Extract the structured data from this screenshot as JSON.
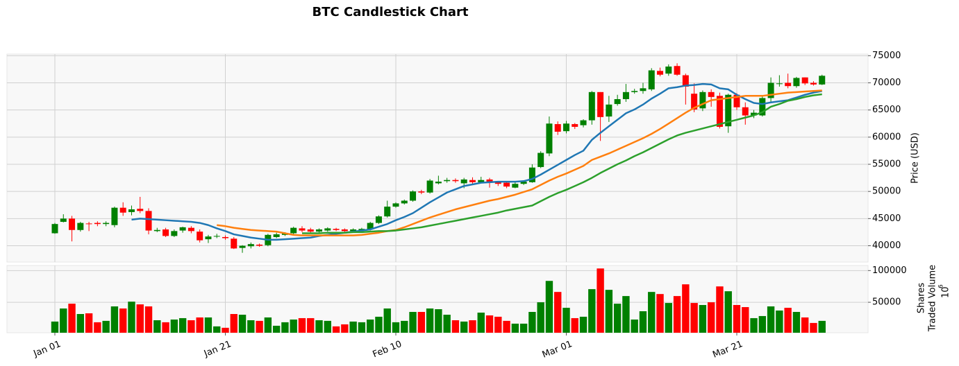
{
  "chart_data": {
    "type": "candlestick",
    "title": "BTC Candlestick Chart",
    "ylabel": "Price (USD)",
    "volume_ylabel": [
      "Shares",
      "Traded Volume"
    ],
    "volume_offset": {
      "base": "10",
      "exponent": "6"
    },
    "categories": [
      "Jan 01",
      null,
      null,
      null,
      null,
      null,
      null,
      null,
      null,
      null,
      null,
      null,
      null,
      null,
      null,
      null,
      null,
      null,
      null,
      null,
      "Jan 21",
      null,
      null,
      null,
      null,
      null,
      null,
      null,
      null,
      null,
      null,
      null,
      null,
      null,
      null,
      null,
      null,
      null,
      null,
      null,
      "Feb 10",
      null,
      null,
      null,
      null,
      null,
      null,
      null,
      null,
      null,
      null,
      null,
      null,
      null,
      null,
      null,
      null,
      null,
      null,
      null,
      "Mar 01",
      null,
      null,
      null,
      null,
      null,
      null,
      null,
      null,
      null,
      null,
      null,
      null,
      null,
      null,
      null,
      null,
      null,
      null,
      null,
      "Mar 21",
      null,
      null,
      null,
      null,
      null,
      null,
      null,
      null,
      null,
      null
    ],
    "open": [
      42300,
      44400,
      45000,
      42900,
      44100,
      44200,
      44000,
      43800,
      47000,
      46200,
      46800,
      46400,
      42700,
      43000,
      41800,
      42800,
      43300,
      42600,
      41200,
      41700,
      41600,
      41300,
      39600,
      39900,
      40200,
      40100,
      41600,
      42000,
      42300,
      43200,
      43000,
      42600,
      42800,
      43100,
      43000,
      42700,
      42800,
      43000,
      44200,
      45400,
      47200,
      47800,
      48300,
      50000,
      49800,
      51500,
      51900,
      52100,
      51500,
      52100,
      51700,
      52200,
      51700,
      51600,
      50700,
      51400,
      51700,
      54500,
      57000,
      62400,
      61100,
      62400,
      62200,
      63100,
      68300,
      63800,
      66100,
      67000,
      68300,
      68500,
      68800,
      72200,
      71700,
      73100,
      71400,
      68000,
      65300,
      68300,
      67600,
      62000,
      67800,
      65500,
      64000,
      64000,
      67200,
      69800,
      70000,
      69400,
      71000,
      70000,
      69700
    ],
    "high": [
      44200,
      45800,
      45500,
      44400,
      44400,
      44500,
      44500,
      47200,
      48000,
      47400,
      49000,
      46900,
      43300,
      43300,
      43000,
      43500,
      43600,
      43000,
      42000,
      42200,
      41900,
      41600,
      40100,
      40600,
      40400,
      42200,
      42400,
      42500,
      43500,
      43600,
      43300,
      43200,
      43400,
      43300,
      43200,
      43200,
      43300,
      44400,
      45600,
      48300,
      48000,
      48500,
      50200,
      50300,
      52300,
      52900,
      52500,
      52400,
      52500,
      52600,
      52700,
      52500,
      51900,
      51700,
      51800,
      52000,
      55000,
      57400,
      63800,
      62900,
      63000,
      62600,
      63300,
      68500,
      68300,
      67600,
      67800,
      69800,
      68900,
      70000,
      72700,
      72800,
      73400,
      73600,
      71700,
      69900,
      68600,
      68800,
      68200,
      68000,
      68100,
      66400,
      65000,
      67500,
      71000,
      71400,
      71700,
      71100,
      71000,
      70300,
      71500
    ],
    "low": [
      42200,
      44300,
      40800,
      42600,
      42700,
      43600,
      43600,
      43400,
      45500,
      45600,
      46000,
      42100,
      42500,
      41600,
      41600,
      42400,
      42300,
      40600,
      40500,
      41400,
      41100,
      39400,
      38700,
      39500,
      39800,
      39900,
      41400,
      41800,
      42000,
      42500,
      42400,
      42400,
      42600,
      42700,
      42500,
      42500,
      42600,
      42800,
      44000,
      45200,
      47000,
      47600,
      48100,
      49500,
      49600,
      51300,
      51600,
      51600,
      50600,
      51400,
      51500,
      50700,
      51000,
      50600,
      50600,
      51200,
      51600,
      54300,
      56500,
      60400,
      60700,
      61500,
      61800,
      62300,
      59300,
      62800,
      65800,
      66500,
      68000,
      68000,
      68500,
      71200,
      71300,
      71300,
      66000,
      64600,
      64800,
      65600,
      61600,
      60800,
      65000,
      62300,
      63500,
      63800,
      66500,
      69300,
      69000,
      69100,
      69600,
      69500,
      69600
    ],
    "close": [
      44000,
      45000,
      42900,
      44200,
      44000,
      44000,
      44200,
      47000,
      46100,
      46700,
      46400,
      42800,
      42900,
      41800,
      42700,
      43400,
      42700,
      41000,
      41700,
      41800,
      41400,
      39500,
      40000,
      40300,
      40000,
      42000,
      42100,
      42300,
      43300,
      42800,
      42600,
      43000,
      43200,
      42900,
      42700,
      43000,
      43100,
      44200,
      45400,
      47200,
      47800,
      48300,
      50000,
      49800,
      52000,
      51800,
      52100,
      51900,
      52200,
      51700,
      52100,
      51700,
      51400,
      50900,
      51400,
      51800,
      54400,
      57100,
      62500,
      61000,
      62500,
      61900,
      63100,
      68300,
      63700,
      66000,
      67000,
      68300,
      68500,
      69000,
      72300,
      71500,
      73000,
      71500,
      69300,
      65100,
      68300,
      67400,
      61900,
      67800,
      65500,
      64000,
      64500,
      67200,
      70000,
      69900,
      69400,
      70900,
      69900,
      69700,
      71300
    ],
    "volume": [
      19600,
      40200,
      47800,
      31500,
      32600,
      18500,
      20700,
      43500,
      40200,
      51000,
      46700,
      43500,
      21700,
      18500,
      22800,
      25000,
      21700,
      26100,
      26100,
      12000,
      9800,
      31500,
      30400,
      21700,
      20700,
      26100,
      13000,
      18500,
      22800,
      25000,
      25000,
      21700,
      20700,
      12000,
      15200,
      19600,
      18500,
      22800,
      27200,
      40200,
      18500,
      20700,
      34800,
      34800,
      40200,
      39100,
      30400,
      21700,
      19600,
      21700,
      33700,
      29300,
      27200,
      20700,
      16300,
      16300,
      34800,
      50000,
      83700,
      66300,
      41300,
      25000,
      27200,
      70700,
      103300,
      69600,
      47800,
      59800,
      22800,
      35900,
      66300,
      63000,
      48900,
      59800,
      78300,
      48900,
      45700,
      50000,
      75000,
      67400,
      45700,
      42400,
      25000,
      28300,
      43500,
      37000,
      41300,
      34800,
      26100,
      17400,
      20700
    ],
    "moving_averages": [
      {
        "color": "#1f77b4",
        "values": [
          null,
          null,
          null,
          null,
          null,
          null,
          null,
          null,
          null,
          44800,
          45000,
          44900,
          44800,
          44700,
          44600,
          44500,
          44400,
          44200,
          43800,
          43200,
          42700,
          42100,
          41800,
          41500,
          41300,
          41100,
          41100,
          41200,
          41300,
          41400,
          41500,
          41800,
          42000,
          42200,
          42400,
          42600,
          42800,
          43000,
          43500,
          44000,
          44700,
          45300,
          46000,
          47000,
          48000,
          48900,
          49800,
          50400,
          51000,
          51300,
          51600,
          51700,
          51800,
          51800,
          51800,
          51900,
          52300,
          53100,
          54000,
          54900,
          55800,
          56700,
          57500,
          59500,
          60800,
          62000,
          63200,
          64400,
          65100,
          66000,
          67100,
          68000,
          69000,
          69200,
          69500,
          69600,
          69800,
          69700,
          69000,
          68800,
          67800,
          67000,
          66300,
          66100,
          66400,
          66600,
          66800,
          67300,
          67800,
          68200,
          68500
        ]
      },
      {
        "color": "#ff7f0e",
        "values": [
          null,
          null,
          null,
          null,
          null,
          null,
          null,
          null,
          null,
          null,
          null,
          null,
          null,
          null,
          null,
          null,
          null,
          null,
          null,
          43800,
          43600,
          43300,
          43100,
          42900,
          42800,
          42700,
          42600,
          42300,
          42000,
          41900,
          41900,
          41900,
          41900,
          41900,
          41900,
          41900,
          42000,
          42200,
          42400,
          42700,
          42900,
          43400,
          44000,
          44600,
          45200,
          45700,
          46200,
          46700,
          47100,
          47500,
          47900,
          48300,
          48600,
          49000,
          49400,
          49900,
          50400,
          51200,
          52000,
          52700,
          53300,
          54000,
          54700,
          55800,
          56400,
          57000,
          57700,
          58400,
          59100,
          59800,
          60600,
          61500,
          62500,
          63500,
          64500,
          65400,
          66100,
          66800,
          67000,
          67200,
          67400,
          67600,
          67600,
          67600,
          67800,
          68000,
          68200,
          68300,
          68400,
          68500,
          68600
        ]
      },
      {
        "color": "#2ca02c",
        "values": [
          null,
          null,
          null,
          null,
          null,
          null,
          null,
          null,
          null,
          null,
          null,
          null,
          null,
          null,
          null,
          null,
          null,
          null,
          null,
          null,
          null,
          null,
          null,
          null,
          null,
          null,
          null,
          null,
          null,
          42300,
          42300,
          42300,
          42400,
          42400,
          42400,
          42500,
          42500,
          42600,
          42700,
          42700,
          42800,
          43000,
          43200,
          43400,
          43700,
          44000,
          44300,
          44600,
          44900,
          45200,
          45500,
          45800,
          46100,
          46500,
          46800,
          47100,
          47400,
          48200,
          49000,
          49700,
          50300,
          51000,
          51700,
          52500,
          53400,
          54200,
          55000,
          55700,
          56500,
          57200,
          58000,
          58800,
          59600,
          60300,
          60800,
          61200,
          61600,
          62000,
          62400,
          62800,
          63200,
          63600,
          64000,
          64600,
          65600,
          66100,
          66700,
          67000,
          67400,
          67700,
          67900
        ]
      }
    ],
    "up_color": "#008000",
    "down_color": "#ff0000",
    "ylim": [
      37000,
      75300
    ],
    "yticks": [
      40000,
      45000,
      50000,
      55000,
      60000,
      65000,
      70000,
      75000
    ],
    "volume_ylim": [
      2000,
      108000
    ],
    "volume_yticks": [
      50000,
      100000
    ],
    "grid": true
  }
}
